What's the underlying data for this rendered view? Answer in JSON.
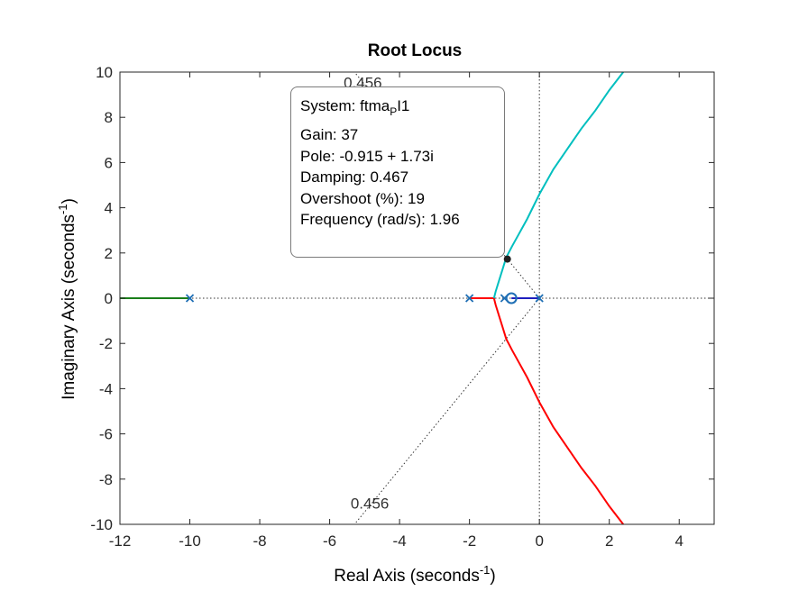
{
  "chart_data": {
    "type": "line",
    "title": "Root Locus",
    "xlabel": "Real Axis (seconds",
    "xlabel_sup": "-1",
    "xlabel_end": ")",
    "ylabel": "Imaginary Axis (seconds",
    "ylabel_sup": "-1",
    "ylabel_end": ")",
    "xlim": [
      -12,
      5
    ],
    "ylim": [
      -10,
      10
    ],
    "xticks": [
      -12,
      -10,
      -8,
      -6,
      -4,
      -2,
      0,
      2,
      4
    ],
    "yticks": [
      -10,
      -8,
      -6,
      -4,
      -2,
      0,
      2,
      4,
      6,
      8,
      10
    ],
    "grid": "off",
    "poles": [
      {
        "x": -10,
        "y": 0
      },
      {
        "x": -2,
        "y": 0
      },
      {
        "x": -1,
        "y": 0
      },
      {
        "x": 0,
        "y": 0
      }
    ],
    "zeros": [
      {
        "x": -0.8,
        "y": 0
      }
    ],
    "damping_line_label": "0.456",
    "damping_line_label_top": "0.456",
    "series": [
      {
        "color": "#1f1fbf",
        "points": [
          [
            0,
            0
          ],
          [
            -0.8,
            0
          ]
        ]
      },
      {
        "color": "#1a7f1a",
        "points": [
          [
            -10,
            0
          ],
          [
            -12,
            0
          ]
        ]
      },
      {
        "color": "#ff0000",
        "points": [
          [
            -2,
            0
          ],
          [
            -1.3,
            0
          ],
          [
            -1.25,
            -0.3
          ],
          [
            -1.15,
            -0.8
          ],
          [
            -1.05,
            -1.3
          ],
          [
            -0.95,
            -1.8
          ],
          [
            -0.78,
            -2.3
          ],
          [
            -0.6,
            -2.8
          ],
          [
            -0.35,
            -3.5
          ],
          [
            0,
            -4.6
          ],
          [
            0.4,
            -5.7
          ],
          [
            0.8,
            -6.6
          ],
          [
            1.2,
            -7.5
          ],
          [
            1.6,
            -8.3
          ],
          [
            2.0,
            -9.2
          ],
          [
            2.4,
            -10
          ]
        ]
      },
      {
        "color": "#00bfbf",
        "points": [
          [
            -1.3,
            0
          ],
          [
            -1.25,
            0.3
          ],
          [
            -1.15,
            0.8
          ],
          [
            -1.05,
            1.3
          ],
          [
            -0.95,
            1.8
          ],
          [
            -0.78,
            2.3
          ],
          [
            -0.6,
            2.8
          ],
          [
            -0.35,
            3.5
          ],
          [
            0,
            4.6
          ],
          [
            0.4,
            5.7
          ],
          [
            0.8,
            6.6
          ],
          [
            1.2,
            7.5
          ],
          [
            1.6,
            8.3
          ],
          [
            2.0,
            9.2
          ],
          [
            2.4,
            10
          ]
        ]
      }
    ],
    "selected_point": {
      "x": -0.915,
      "y": 1.73
    },
    "datatip": {
      "system_prefix": "System: ftma",
      "system_sub": "P",
      "system_suffix": "I1",
      "gain": "Gain: 37",
      "pole": "Pole: -0.915 + 1.73i",
      "damping": "Damping: 0.467",
      "overshoot": "Overshoot (%): 19",
      "frequency": "Frequency (rad/s): 1.96"
    }
  }
}
